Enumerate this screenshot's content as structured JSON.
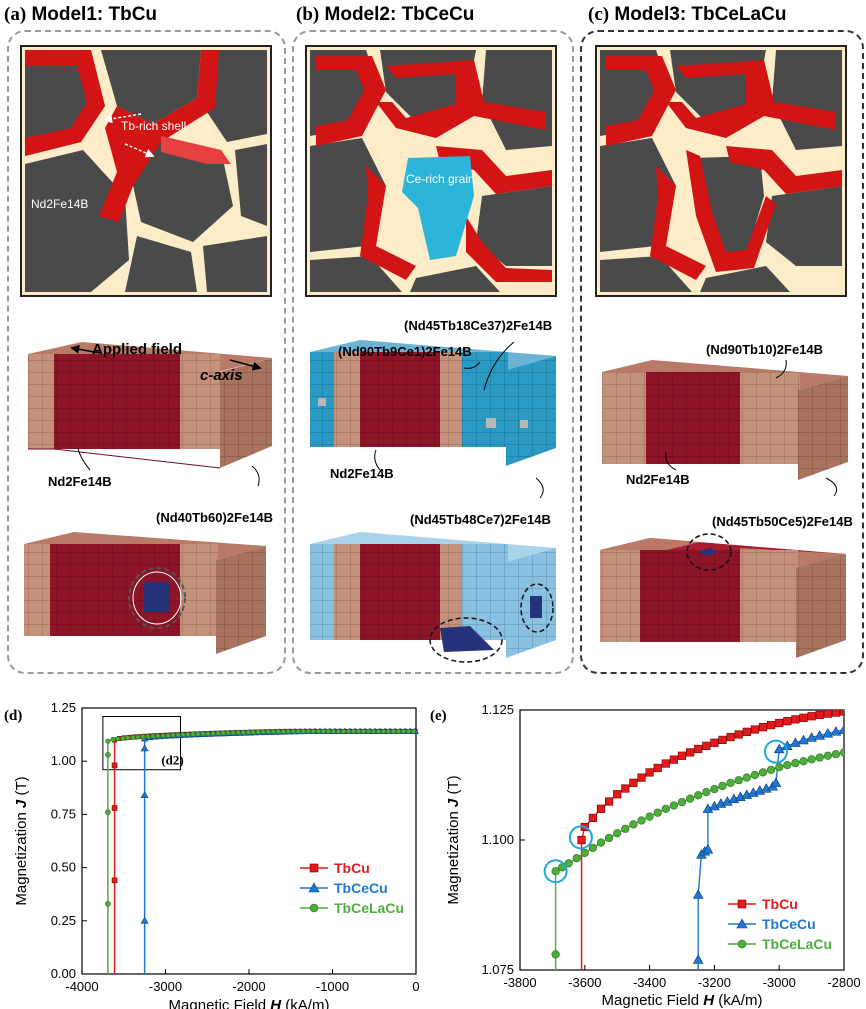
{
  "panels": [
    {
      "tag": "(a)",
      "title": "Model1: TbCu"
    },
    {
      "tag": "(b)",
      "title": "Model2: TbCeCu"
    },
    {
      "tag": "(c)",
      "title": "Model3: TbCeLaCu"
    }
  ],
  "annotations": {
    "shell": "Tb-rich shell",
    "grain_a": "Nd2Fe14B",
    "ce_grain": "Ce-rich grain",
    "applied_field": "Applied field",
    "c_axis": "c-axis",
    "a_core": "Nd2Fe14B",
    "a_shell": "(Nd40Tb60)2Fe14B",
    "b_top_right": "(Nd45Tb18Ce37)2Fe14B",
    "b_top": "(Nd90Tb9Ce1)2Fe14B",
    "b_core": "Nd2Fe14B",
    "b_bottom": "(Nd45Tb48Ce7)2Fe14B",
    "c_top": "(Nd90Tb10)2Fe14B",
    "c_core": "Nd2Fe14B",
    "c_bottom": "(Nd45Tb50Ce5)2Fe14B"
  },
  "colors": {
    "shell_red": "#d21414",
    "grain_gray": "#4a4a4a",
    "boundary": "#fcecc8",
    "ce_blue": "#2cb5d9",
    "core_maroon": "#8e1428",
    "shell_tan": "#c4927a",
    "tbcu": "#e31a1c",
    "tbcecu": "#1f78d1",
    "tbcelacu": "#4caf3c",
    "circle_cyan": "#1fa9d6"
  },
  "chart_data": [
    {
      "panel": "(d)",
      "type": "line",
      "xlabel": "Magnetic Field H (kA/m)",
      "ylabel": "Magnetization J (T)",
      "xlim": [
        -4000,
        0
      ],
      "ylim": [
        0,
        1.25
      ],
      "xticks": [
        "-4000",
        "-3000",
        "-2000",
        "-1000",
        "0"
      ],
      "yticks": [
        "0.00",
        "0.25",
        "0.50",
        "0.75",
        "1.00",
        "1.25"
      ],
      "inset_label": "(d2)",
      "legend_position": "bottom-right",
      "series": [
        {
          "name": "TbCu",
          "color": "#e31a1c",
          "marker": "square",
          "Hc": -3610,
          "switch_points": [
            [
              -3610,
              0.98
            ],
            [
              -3610,
              0.78
            ],
            [
              -3610,
              0.44
            ]
          ]
        },
        {
          "name": "TbCeCu",
          "color": "#1f78d1",
          "marker": "triangle",
          "Hc": -3250,
          "switch_points": [
            [
              -3250,
              1.06
            ],
            [
              -3250,
              0.84
            ],
            [
              -3250,
              0.25
            ]
          ]
        },
        {
          "name": "TbCeLaCu",
          "color": "#4caf3c",
          "marker": "circle",
          "Hc": -3690,
          "switch_points": [
            [
              -3690,
              1.03
            ],
            [
              -3690,
              0.76
            ],
            [
              -3690,
              0.33
            ]
          ]
        }
      ]
    },
    {
      "panel": "(e)",
      "type": "line",
      "xlabel": "Magnetic Field H (kA/m)",
      "ylabel": "Magnetization J (T)",
      "xlim": [
        -3800,
        -2800
      ],
      "ylim": [
        1.075,
        1.125
      ],
      "xticks": [
        "-3800",
        "-3600",
        "-3400",
        "-3200",
        "-3000",
        "-2800"
      ],
      "yticks": [
        "1.075",
        "1.100",
        "1.125"
      ],
      "legend_position": "bottom-right",
      "series": [
        {
          "name": "TbCu",
          "color": "#e31a1c",
          "marker": "square",
          "x": [
            -3610,
            -3600,
            -3550,
            -3500,
            -3450,
            -3400,
            -3350,
            -3300,
            -3250,
            -3200,
            -3150,
            -3100,
            -3050,
            -3000,
            -2950,
            -2900,
            -2850,
            -2800
          ],
          "y": [
            1.1,
            1.1025,
            1.106,
            1.1088,
            1.111,
            1.113,
            1.1147,
            1.1162,
            1.1175,
            1.1187,
            1.1198,
            1.1208,
            1.1217,
            1.1225,
            1.1232,
            1.1238,
            1.1243,
            1.1247
          ]
        },
        {
          "name": "TbCeCu",
          "color": "#1f78d1",
          "marker": "triangle",
          "x": [
            -3250,
            -3250,
            -3240,
            -3230,
            -3220,
            -3220,
            -3200,
            -3180,
            -3160,
            -3140,
            -3120,
            -3100,
            -3080,
            -3060,
            -3040,
            -3020,
            -3010,
            -3000,
            -2950,
            -2900,
            -2850,
            -2800
          ],
          "y": [
            1.077,
            1.0895,
            1.0972,
            1.0978,
            1.0982,
            1.106,
            1.1065,
            1.107,
            1.1074,
            1.1079,
            1.1083,
            1.1087,
            1.1091,
            1.1095,
            1.1099,
            1.1103,
            1.111,
            1.1175,
            1.1187,
            1.1197,
            1.1205,
            1.1212
          ]
        },
        {
          "name": "TbCeLaCu",
          "color": "#4caf3c",
          "marker": "circle",
          "x": [
            -3690,
            -3690,
            -3650,
            -3600,
            -3550,
            -3500,
            -3450,
            -3400,
            -3350,
            -3300,
            -3250,
            -3200,
            -3150,
            -3100,
            -3050,
            -3000,
            -2950,
            -2900,
            -2850,
            -2800
          ],
          "y": [
            1.078,
            1.094,
            1.0955,
            1.0975,
            1.0995,
            1.1013,
            1.103,
            1.1045,
            1.106,
            1.1073,
            1.1086,
            1.1098,
            1.111,
            1.112,
            1.113,
            1.114,
            1.1148,
            1.1155,
            1.1162,
            1.1168
          ]
        }
      ],
      "highlight_circles": [
        [
          -3690,
          1.094
        ],
        [
          -3612,
          1.1005
        ],
        [
          -3010,
          1.117
        ]
      ]
    }
  ]
}
